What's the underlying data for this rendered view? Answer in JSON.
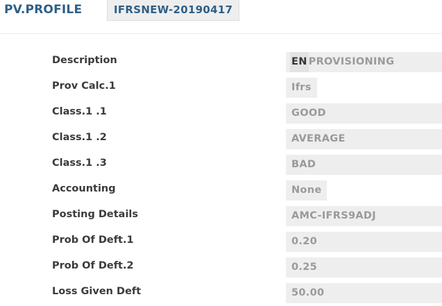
{
  "header": {
    "app_title": "PV.PROFILE",
    "record_id": "IFRSNEW-20190417"
  },
  "fields": {
    "description": {
      "label": "Description",
      "lang": "EN",
      "value": "PROVISIONING"
    },
    "prov_calc": {
      "label": "Prov Calc.1",
      "value": "Ifrs"
    },
    "class_1": {
      "label": "Class.1 .1",
      "value": "GOOD"
    },
    "class_2": {
      "label": "Class.1 .2",
      "value": "AVERAGE"
    },
    "class_3": {
      "label": "Class.1 .3",
      "value": "BAD"
    },
    "accounting": {
      "label": "Accounting",
      "value": "None"
    },
    "posting_details": {
      "label": "Posting Details",
      "value": "AMC-IFRS9ADJ"
    },
    "prob_deft_1": {
      "label": "Prob Of Deft.1",
      "value": "0.20"
    },
    "prob_deft_2": {
      "label": "Prob Of Deft.2",
      "value": "0.25"
    },
    "loss_given_deft": {
      "label": "Loss Given Deft",
      "value": "50.00"
    }
  }
}
